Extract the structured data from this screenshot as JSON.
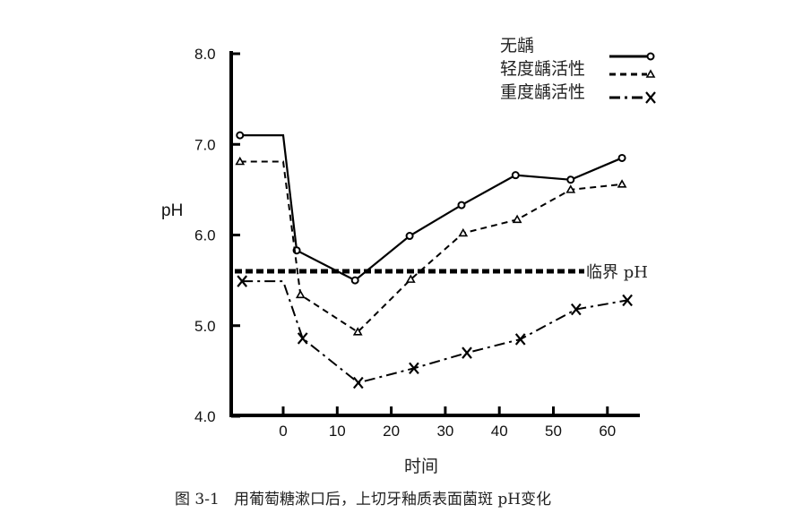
{
  "chart_data": {
    "type": "line",
    "title": "图 3-1   用葡萄糖漱口后，上切牙釉质表面菌斑 pH变化",
    "xlabel": "时间",
    "ylabel": "pH",
    "xlim": [
      -8,
      65
    ],
    "ylim": [
      4.0,
      8.0
    ],
    "xticks": [
      0,
      10,
      20,
      30,
      40,
      50,
      60
    ],
    "yticks": [
      "4.0",
      "5.0",
      "6.0",
      "7.0",
      "8.0"
    ],
    "grid": false,
    "legend_position": "upper right",
    "series": [
      {
        "name": "无龋",
        "line_style": "solid",
        "marker": "circle",
        "x": [
          -8,
          0,
          2.5,
          13.3,
          23.4,
          33,
          43,
          53.2,
          62.7
        ],
        "y": [
          7.1,
          7.1,
          5.83,
          5.5,
          5.99,
          6.33,
          6.66,
          6.61,
          6.85
        ]
      },
      {
        "name": "轻度龋活性",
        "line_style": "dashed",
        "marker": "triangle",
        "x": [
          -8,
          0,
          3.2,
          13.8,
          23.6,
          33.3,
          43.3,
          53.2,
          62.7
        ],
        "y": [
          6.81,
          6.81,
          5.34,
          4.93,
          5.51,
          6.02,
          6.17,
          6.5,
          6.56
        ]
      },
      {
        "name": "重度龋活性",
        "line_style": "dash-dot",
        "marker": "x",
        "x": [
          -7.6,
          0,
          3.6,
          13.9,
          24.2,
          34,
          43.9,
          54.2,
          63.7
        ],
        "y": [
          5.49,
          5.49,
          4.86,
          4.37,
          4.53,
          4.7,
          4.85,
          5.18,
          5.28
        ]
      }
    ],
    "reference_lines": [
      {
        "name": "临界 pH",
        "y": 5.6,
        "style": "dotted-thick"
      }
    ]
  },
  "figure": {
    "caption": "图 3-1   用葡萄糖漱口后，上切牙釉质表面菌斑 pH变化",
    "critical_label": "临界 pH"
  }
}
